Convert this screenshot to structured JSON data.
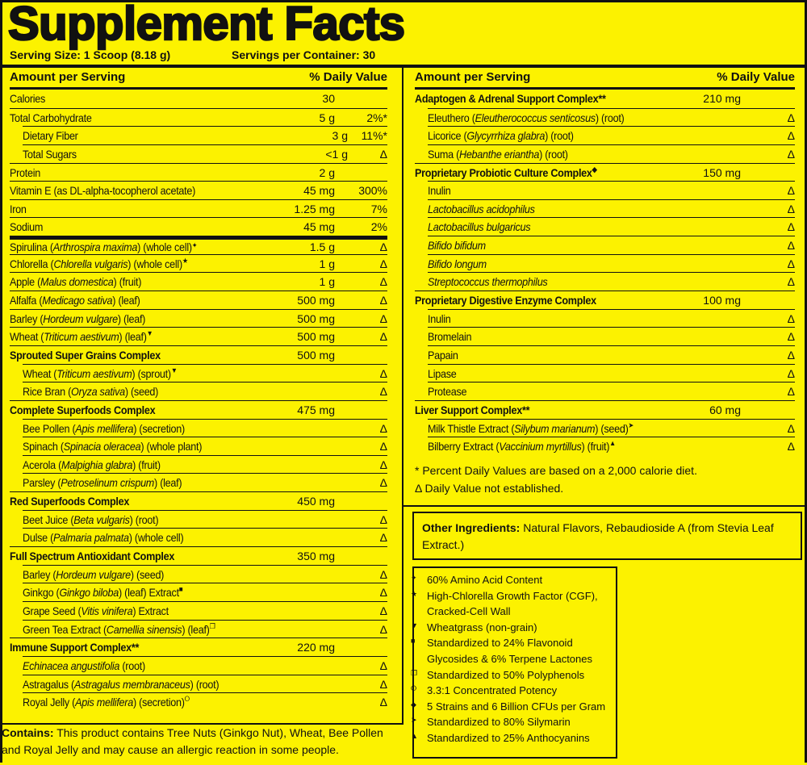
{
  "title": "Supplement Facts",
  "serving_size": "Serving Size: 1 Scoop (8.18 g)",
  "servings_per_container": "Servings per Container: 30",
  "header": {
    "amount": "Amount per Serving",
    "dv": "% Daily Value"
  },
  "left_rows": [
    {
      "p": [
        {
          "t": "Calories"
        }
      ],
      "am": "30",
      "dv": ""
    },
    {
      "p": [
        {
          "t": "Total Carbohydrate"
        }
      ],
      "am": "5 g",
      "dv": "2%*"
    },
    {
      "p": [
        {
          "t": "Dietary Fiber"
        }
      ],
      "am": "3 g",
      "dv": "11%*",
      "ind": 1
    },
    {
      "p": [
        {
          "t": "Total Sugars"
        }
      ],
      "am": "<1 g",
      "dv": "Δ",
      "ind": 1
    },
    {
      "p": [
        {
          "t": "Protein"
        }
      ],
      "am": "2 g",
      "dv": ""
    },
    {
      "p": [
        {
          "t": "Vitamin E (as DL-alpha-tocopherol acetate)"
        }
      ],
      "am": "45 mg",
      "dv": "300%"
    },
    {
      "p": [
        {
          "t": "Iron"
        }
      ],
      "am": "1.25 mg",
      "dv": "7%"
    },
    {
      "p": [
        {
          "t": "Sodium"
        }
      ],
      "am": "45 mg",
      "dv": "2%"
    },
    {
      "p": [
        {
          "t": "Spirulina ("
        },
        {
          "t": "Arthrospira maxima",
          "i": 1
        },
        {
          "t": ") (whole cell)"
        }
      ],
      "sym": "✦",
      "am": "1.5 g",
      "dv": "Δ",
      "thick": 1
    },
    {
      "p": [
        {
          "t": "Chlorella ("
        },
        {
          "t": "Chlorella vulgaris",
          "i": 1
        },
        {
          "t": ") (whole cell)"
        }
      ],
      "sym": "★",
      "am": "1 g",
      "dv": "Δ"
    },
    {
      "p": [
        {
          "t": "Apple ("
        },
        {
          "t": "Malus domestica",
          "i": 1
        },
        {
          "t": ") (fruit)"
        }
      ],
      "am": "1 g",
      "dv": "Δ"
    },
    {
      "p": [
        {
          "t": "Alfalfa ("
        },
        {
          "t": "Medicago sativa",
          "i": 1
        },
        {
          "t": ") (leaf)"
        }
      ],
      "am": "500 mg",
      "dv": "Δ"
    },
    {
      "p": [
        {
          "t": "Barley ("
        },
        {
          "t": "Hordeum vulgare",
          "i": 1
        },
        {
          "t": ") (leaf)"
        }
      ],
      "am": "500 mg",
      "dv": "Δ"
    },
    {
      "p": [
        {
          "t": "Wheat ("
        },
        {
          "t": "Triticum aestivum",
          "i": 1
        },
        {
          "t": ") (leaf)"
        }
      ],
      "sym": "▼",
      "am": "500 mg",
      "dv": "Δ"
    },
    {
      "p": [
        {
          "t": "Sprouted Super Grains Complex"
        }
      ],
      "am": "500 mg",
      "dv": "",
      "b": 1
    },
    {
      "p": [
        {
          "t": "Wheat ("
        },
        {
          "t": "Triticum aestivum",
          "i": 1
        },
        {
          "t": ") (sprout)"
        }
      ],
      "sym": "▼",
      "am": "",
      "dv": "Δ",
      "ind": 1
    },
    {
      "p": [
        {
          "t": "Rice Bran ("
        },
        {
          "t": "Oryza sativa",
          "i": 1
        },
        {
          "t": ") (seed)"
        }
      ],
      "am": "",
      "dv": "Δ",
      "ind": 1
    },
    {
      "p": [
        {
          "t": "Complete Superfoods Complex"
        }
      ],
      "am": "475 mg",
      "dv": "",
      "b": 1
    },
    {
      "p": [
        {
          "t": "Bee Pollen ("
        },
        {
          "t": "Apis mellifera",
          "i": 1
        },
        {
          "t": ") (secretion)"
        }
      ],
      "am": "",
      "dv": "Δ",
      "ind": 1
    },
    {
      "p": [
        {
          "t": "Spinach ("
        },
        {
          "t": "Spinacia oleracea",
          "i": 1
        },
        {
          "t": ") (whole plant)"
        }
      ],
      "am": "",
      "dv": "Δ",
      "ind": 1
    },
    {
      "p": [
        {
          "t": "Acerola ("
        },
        {
          "t": "Malpighia glabra",
          "i": 1
        },
        {
          "t": ") (fruit)"
        }
      ],
      "am": "",
      "dv": "Δ",
      "ind": 1
    },
    {
      "p": [
        {
          "t": "Parsley ("
        },
        {
          "t": "Petroselinum crispum",
          "i": 1
        },
        {
          "t": ") (leaf)"
        }
      ],
      "am": "",
      "dv": "Δ",
      "ind": 1
    },
    {
      "p": [
        {
          "t": "Red Superfoods Complex"
        }
      ],
      "am": "450 mg",
      "dv": "",
      "b": 1
    },
    {
      "p": [
        {
          "t": "Beet Juice ("
        },
        {
          "t": "Beta vulgaris",
          "i": 1
        },
        {
          "t": ") (root)"
        }
      ],
      "am": "",
      "dv": "Δ",
      "ind": 1
    },
    {
      "p": [
        {
          "t": "Dulse ("
        },
        {
          "t": "Palmaria palmata",
          "i": 1
        },
        {
          "t": ") (whole cell)"
        }
      ],
      "am": "",
      "dv": "Δ",
      "ind": 1
    },
    {
      "p": [
        {
          "t": "Full Spectrum Antioxidant Complex"
        }
      ],
      "am": "350 mg",
      "dv": "",
      "b": 1
    },
    {
      "p": [
        {
          "t": "Barley ("
        },
        {
          "t": "Hordeum vulgare",
          "i": 1
        },
        {
          "t": ") (seed)"
        }
      ],
      "am": "",
      "dv": "Δ",
      "ind": 1
    },
    {
      "p": [
        {
          "t": "Ginkgo ("
        },
        {
          "t": "Ginkgo biloba",
          "i": 1
        },
        {
          "t": ") (leaf) Extract"
        }
      ],
      "sym": "■",
      "am": "",
      "dv": "Δ",
      "ind": 1
    },
    {
      "p": [
        {
          "t": "Grape Seed ("
        },
        {
          "t": "Vitis vinifera",
          "i": 1
        },
        {
          "t": ") Extract"
        }
      ],
      "am": "",
      "dv": "Δ",
      "ind": 1
    },
    {
      "p": [
        {
          "t": "Green Tea Extract ("
        },
        {
          "t": "Camellia sinensis",
          "i": 1
        },
        {
          "t": ") (leaf)"
        }
      ],
      "sym": "❐",
      "am": "",
      "dv": "Δ",
      "ind": 1
    },
    {
      "p": [
        {
          "t": "Immune Support Complex**"
        }
      ],
      "am": "220 mg",
      "dv": "",
      "b": 1
    },
    {
      "p": [
        {
          "t": "Echinacea angustifolia",
          "i": 1
        },
        {
          "t": " (root)"
        }
      ],
      "am": "",
      "dv": "Δ",
      "ind": 1
    },
    {
      "p": [
        {
          "t": "Astragalus ("
        },
        {
          "t": "Astragalus membranaceus",
          "i": 1
        },
        {
          "t": ") (root)"
        }
      ],
      "am": "",
      "dv": "Δ",
      "ind": 1
    },
    {
      "p": [
        {
          "t": "Royal Jelly ("
        },
        {
          "t": "Apis mellifera",
          "i": 1
        },
        {
          "t": ") (secretion)"
        }
      ],
      "sym": "⭘",
      "am": "",
      "dv": "Δ",
      "ind": 1
    }
  ],
  "right_rows": [
    {
      "p": [
        {
          "t": "Adaptogen & Adrenal Support Complex**"
        }
      ],
      "am": "210 mg",
      "dv": "",
      "b": 1
    },
    {
      "p": [
        {
          "t": "Eleuthero ("
        },
        {
          "t": "Eleutherococcus senticosus",
          "i": 1
        },
        {
          "t": ") (root)"
        }
      ],
      "am": "",
      "dv": "Δ",
      "ind": 1
    },
    {
      "p": [
        {
          "t": "Licorice ("
        },
        {
          "t": "Glycyrrhiza glabra",
          "i": 1
        },
        {
          "t": ") (root)"
        }
      ],
      "am": "",
      "dv": "Δ",
      "ind": 1
    },
    {
      "p": [
        {
          "t": "Suma ("
        },
        {
          "t": "Hebanthe eriantha",
          "i": 1
        },
        {
          "t": ") (root)"
        }
      ],
      "am": "",
      "dv": "Δ",
      "ind": 1
    },
    {
      "p": [
        {
          "t": "Proprietary Probiotic Culture Complex"
        }
      ],
      "sym": "◆",
      "am": "150 mg",
      "dv": "",
      "b": 1
    },
    {
      "p": [
        {
          "t": "Inulin"
        }
      ],
      "am": "",
      "dv": "Δ",
      "ind": 1
    },
    {
      "p": [
        {
          "t": "Lactobacillus acidophilus",
          "i": 1
        }
      ],
      "am": "",
      "dv": "Δ",
      "ind": 1
    },
    {
      "p": [
        {
          "t": "Lactobacillus bulgaricus",
          "i": 1
        }
      ],
      "am": "",
      "dv": "Δ",
      "ind": 1
    },
    {
      "p": [
        {
          "t": "Bifido bifidum",
          "i": 1
        }
      ],
      "am": "",
      "dv": "Δ",
      "ind": 1
    },
    {
      "p": [
        {
          "t": "Bifido longum",
          "i": 1
        }
      ],
      "am": "",
      "dv": "Δ",
      "ind": 1
    },
    {
      "p": [
        {
          "t": "Streptococcus thermophilus",
          "i": 1
        }
      ],
      "am": "",
      "dv": "Δ",
      "ind": 1
    },
    {
      "p": [
        {
          "t": "Proprietary Digestive Enzyme Complex"
        }
      ],
      "am": "100 mg",
      "dv": "",
      "b": 1
    },
    {
      "p": [
        {
          "t": "Inulin"
        }
      ],
      "am": "",
      "dv": "Δ",
      "ind": 1
    },
    {
      "p": [
        {
          "t": "Bromelain"
        }
      ],
      "am": "",
      "dv": "Δ",
      "ind": 1
    },
    {
      "p": [
        {
          "t": "Papain"
        }
      ],
      "am": "",
      "dv": "Δ",
      "ind": 1
    },
    {
      "p": [
        {
          "t": "Lipase"
        }
      ],
      "am": "",
      "dv": "Δ",
      "ind": 1
    },
    {
      "p": [
        {
          "t": "Protease"
        }
      ],
      "am": "",
      "dv": "Δ",
      "ind": 1
    },
    {
      "p": [
        {
          "t": "Liver Support Complex**"
        }
      ],
      "am": "60 mg",
      "dv": "",
      "b": 1
    },
    {
      "p": [
        {
          "t": "Milk Thistle Extract ("
        },
        {
          "t": "Silybum marianum",
          "i": 1
        },
        {
          "t": ") (seed)"
        }
      ],
      "sym": "➤",
      "am": "",
      "dv": "Δ",
      "ind": 1
    },
    {
      "p": [
        {
          "t": "Bilberry Extract ("
        },
        {
          "t": "Vaccinium myrtillus",
          "i": 1
        },
        {
          "t": ") (fruit)"
        }
      ],
      "sym": "▲",
      "am": "",
      "dv": "Δ",
      "ind": 1
    }
  ],
  "footnotes": [
    "*  Percent Daily Values are based on a 2,000 calorie diet.",
    "Δ  Daily Value not established."
  ],
  "other_ingredients": {
    "label": "Other Ingredients:",
    "text": " Natural Flavors, Rebaudioside A (from Stevia Leaf Extract.)"
  },
  "symbol_notes": [
    {
      "sym": "✦",
      "text": "60% Amino Acid Content"
    },
    {
      "sym": "★",
      "text": "High-Chlorella Growth Factor (CGF), Cracked-Cell Wall"
    },
    {
      "sym": "▼",
      "text": "Wheatgrass (non-grain)"
    },
    {
      "sym": "■",
      "text": "Standardized to 24% Flavonoid Glycosides & 6% Terpene Lactones"
    },
    {
      "sym": "❐",
      "text": "Standardized to 50% Polyphenols"
    },
    {
      "sym": "⭘",
      "text": "3.3:1 Concentrated Potency"
    },
    {
      "sym": "◆",
      "text": "5 Strains and 6 Billion CFUs per Gram"
    },
    {
      "sym": "➤",
      "text": "Standardized to 80% Silymarin"
    },
    {
      "sym": "▲",
      "text": "Standardized to 25% Anthocyanins"
    }
  ],
  "contains": {
    "label": "Contains:",
    "text": " This product contains Tree Nuts (Ginkgo Nut), Wheat, Bee Pollen and Royal Jelly and may cause an allergic reaction in some people."
  }
}
